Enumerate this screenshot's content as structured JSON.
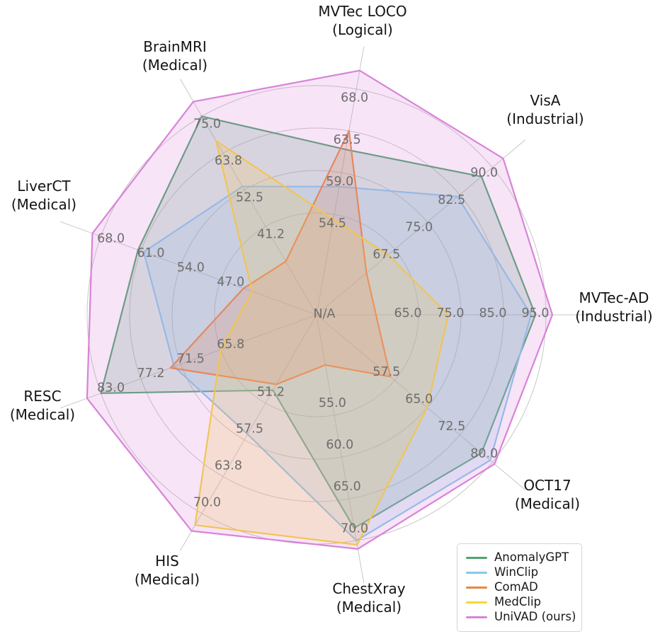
{
  "figure": {
    "description": "Radar chart comparing anomaly detection methods across nine datasets",
    "center_label": "N/A"
  },
  "chart_data": {
    "type": "radar",
    "center_label": "N/A",
    "grid": {
      "rings": 4,
      "gridlines": "circular, light gray"
    },
    "axes": [
      {
        "id": "mvtec-ad",
        "title": "MVTec-AD",
        "subtitle": "(Industrial)",
        "angle_deg": 0,
        "ticks": [
          65.0,
          75.0,
          85.0,
          95.0
        ]
      },
      {
        "id": "visa",
        "title": "VisA",
        "subtitle": "(Industrial)",
        "angle_deg": 40,
        "ticks": [
          67.5,
          75.0,
          82.5,
          90.0
        ]
      },
      {
        "id": "mvtec-loco",
        "title": "MVTec LOCO",
        "subtitle": "(Logical)",
        "angle_deg": 80,
        "ticks": [
          54.5,
          59.0,
          63.5,
          68.0
        ]
      },
      {
        "id": "brainmri",
        "title": "BrainMRI",
        "subtitle": "(Medical)",
        "angle_deg": 120,
        "ticks": [
          41.2,
          52.5,
          63.8,
          75.0
        ]
      },
      {
        "id": "liverct",
        "title": "LiverCT",
        "subtitle": "(Medical)",
        "angle_deg": 160,
        "ticks": [
          47.0,
          54.0,
          61.0,
          68.0
        ]
      },
      {
        "id": "resc",
        "title": "RESC",
        "subtitle": "(Medical)",
        "angle_deg": 200,
        "ticks": [
          65.8,
          71.5,
          77.2,
          83.0
        ]
      },
      {
        "id": "his",
        "title": "HIS",
        "subtitle": "(Medical)",
        "angle_deg": 240,
        "ticks": [
          51.2,
          57.5,
          63.8,
          70.0
        ]
      },
      {
        "id": "chestxray",
        "title": "ChestXray",
        "subtitle": "(Medical)",
        "angle_deg": 280,
        "ticks": [
          55.0,
          60.0,
          65.0,
          70.0
        ]
      },
      {
        "id": "oct17",
        "title": "OCT17",
        "subtitle": "(Medical)",
        "angle_deg": 320,
        "ticks": [
          57.5,
          65.0,
          72.5,
          80.0
        ]
      }
    ],
    "series": [
      {
        "name": "AnomalyGPT",
        "color": "#4fa370",
        "values": [
          92.5,
          87.5,
          61.5,
          75.0,
          61.5,
          83.0,
          49.0,
          68.5,
          77.5
        ]
      },
      {
        "name": "WinClip",
        "color": "#85c8ea",
        "values": [
          91.5,
          82.0,
          57.5,
          53.5,
          60.5,
          72.5,
          56.5,
          70.0,
          79.5
        ]
      },
      {
        "name": "ComAD",
        "color": "#e8883f",
        "values": [
          55.0,
          61.0,
          63.5,
          30.5,
          43.0,
          73.0,
          48.0,
          49.0,
          56.5
        ]
      },
      {
        "name": "MedClip",
        "color": "#f7d831",
        "values": [
          72.0,
          66.0,
          54.0,
          67.5,
          41.5,
          65.8,
          72.0,
          70.5,
          65.0
        ]
      },
      {
        "name": "UniVAD (ours)",
        "color": "#d983d9",
        "values": [
          96.5,
          92.5,
          70.0,
          79.5,
          69.5,
          85.0,
          73.0,
          71.0,
          80.5
        ]
      }
    ],
    "legend": {
      "position": "bottom-right",
      "entries": [
        "AnomalyGPT",
        "WinClip",
        "ComAD",
        "MedClip",
        "UniVAD (ours)"
      ]
    }
  }
}
